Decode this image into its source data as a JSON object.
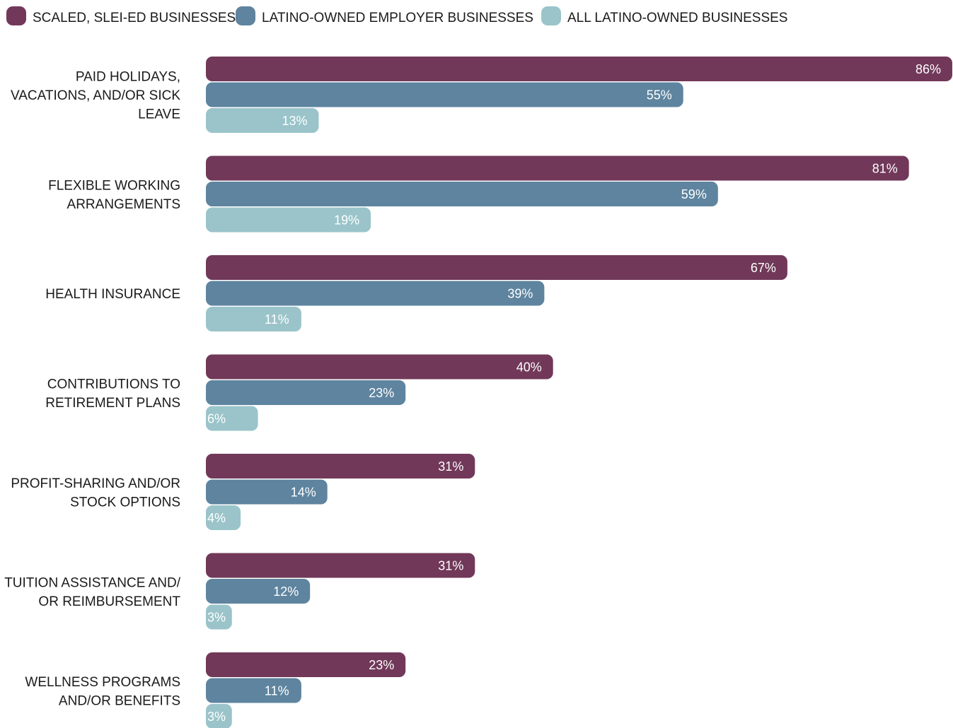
{
  "chart_data": {
    "type": "bar",
    "orientation": "horizontal",
    "grouped": true,
    "legend_position": "top-left",
    "grid": false,
    "xlim": [
      0,
      86
    ],
    "value_suffix": "%",
    "categories": [
      [
        "PAID HOLIDAYS,",
        "VACATIONS, AND/OR SICK",
        "LEAVE"
      ],
      [
        "FLEXIBLE WORKING",
        "ARRANGEMENTS"
      ],
      [
        "HEALTH INSURANCE"
      ],
      [
        "CONTRIBUTIONS TO",
        "RETIREMENT PLANS"
      ],
      [
        "PROFIT-SHARING AND/OR",
        "STOCK OPTIONS"
      ],
      [
        "TUITION ASSISTANCE AND/",
        "OR REIMBURSEMENT"
      ],
      [
        "WELLNESS PROGRAMS",
        "AND/OR BENEFITS"
      ]
    ],
    "series": [
      {
        "name": "SCALED, SLEI-ED BUSINESSES",
        "color": "#713859",
        "values": [
          86,
          81,
          67,
          40,
          31,
          31,
          23
        ]
      },
      {
        "name": "LATINO-OWNED EMPLOYER BUSINESSES",
        "color": "#5e849f",
        "values": [
          55,
          59,
          39,
          23,
          14,
          12,
          11
        ]
      },
      {
        "name": "ALL LATINO-OWNED BUSINESSES",
        "color": "#9ac4ca",
        "values": [
          13,
          19,
          11,
          6,
          4,
          3,
          3
        ]
      }
    ]
  }
}
